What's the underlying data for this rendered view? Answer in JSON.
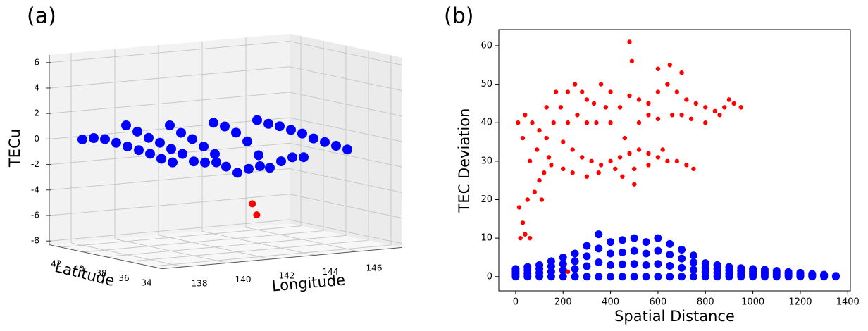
{
  "chart_data": [
    {
      "type": "scatter3d",
      "panel": "(a)",
      "zlabel": "TECu",
      "ylabel": "Latitude",
      "xlabel": "Longitude",
      "xlim": [
        137,
        148
      ],
      "ylim": [
        33,
        43
      ],
      "zlim": [
        -8.3,
        6.6
      ],
      "xticks": [
        138,
        140,
        142,
        144,
        146
      ],
      "yticks": [
        34,
        36,
        38,
        40,
        42
      ],
      "zticks": [
        6,
        4,
        2,
        0,
        -2,
        -4,
        -6,
        -8
      ],
      "series": [
        {
          "color": "#0000ff",
          "x": [
            138,
            140,
            142,
            144,
            146,
            138,
            140,
            142,
            144,
            146,
            138,
            140,
            142,
            144,
            146,
            138,
            140,
            142,
            144,
            146,
            138,
            140,
            142,
            144,
            146,
            138,
            140,
            142,
            144,
            146,
            138,
            140,
            142,
            144,
            146,
            138,
            140,
            142,
            144,
            146,
            138,
            140,
            142,
            144,
            146
          ],
          "y": [
            34,
            34,
            34,
            34,
            34,
            35,
            35,
            35,
            35,
            35,
            36,
            36,
            36,
            36,
            36,
            37,
            37,
            37,
            37,
            37,
            38,
            38,
            38,
            38,
            38,
            39,
            39,
            39,
            39,
            39,
            40,
            40,
            40,
            40,
            40,
            41,
            41,
            41,
            41,
            41,
            42,
            42,
            42,
            42,
            42
          ],
          "values": [
            -0.3,
            -0.6,
            -1.2,
            -0.8,
            -0.5,
            -0.2,
            -0.8,
            -1.6,
            -1.0,
            -0.4,
            0.0,
            -0.9,
            -2.1,
            -1.5,
            -0.3,
            0.1,
            -0.5,
            -1.8,
            -2.2,
            -0.2,
            0.2,
            -0.3,
            -1.0,
            -1.4,
            0.0,
            0.3,
            0.0,
            -0.6,
            -0.5,
            0.1,
            0.4,
            0.2,
            -0.2,
            0.0,
            0.2,
            0.3,
            0.5,
            0.1,
            0.3,
            0.2,
            0.0,
            0.8,
            0.5,
            0.4,
            0.3
          ]
        },
        {
          "color": "#ff0000",
          "x": [
            143.2,
            143.4
          ],
          "y": [
            37,
            37
          ],
          "values": [
            -4.9,
            -5.8
          ]
        }
      ]
    },
    {
      "type": "scatter",
      "panel": "(b)",
      "xlabel": "Spatial Distance",
      "ylabel": "TEC Deviation",
      "xlim": [
        -71,
        1411
      ],
      "ylim": [
        -3.7,
        64.2
      ],
      "xticks": [
        0,
        200,
        400,
        600,
        800,
        1000,
        1200,
        1400
      ],
      "yticks": [
        0,
        10,
        20,
        30,
        40,
        50,
        60
      ],
      "series": [
        {
          "color": "#0000ff",
          "x": [
            0,
            0,
            0,
            0,
            50,
            50,
            50,
            50,
            100,
            100,
            100,
            100,
            150,
            150,
            150,
            150,
            200,
            200,
            200,
            200,
            250,
            250,
            250,
            250,
            300,
            300,
            300,
            300,
            350,
            350,
            350,
            350,
            400,
            400,
            400,
            400,
            450,
            450,
            450,
            450,
            500,
            500,
            500,
            500,
            550,
            550,
            550,
            550,
            600,
            600,
            600,
            600,
            650,
            650,
            650,
            650,
            700,
            700,
            700,
            700,
            750,
            750,
            750,
            750,
            800,
            800,
            800,
            800,
            850,
            850,
            850,
            850,
            900,
            900,
            900,
            900,
            950,
            950,
            950,
            950,
            1000,
            1000,
            1000,
            1000,
            1050,
            1050,
            1050,
            1050,
            1100,
            1100,
            1100,
            1100,
            1150,
            1150,
            1150,
            1150,
            1200,
            1200,
            1200,
            1200,
            1250,
            1250,
            1250,
            1250,
            1300,
            1300,
            1300,
            1300,
            1350,
            1350,
            1350,
            1350
          ],
          "values": [
            0,
            0.7,
            1.3,
            2,
            0,
            0.8,
            1.7,
            2.5,
            0,
            1,
            2,
            3,
            0,
            1.3,
            2.7,
            4,
            0,
            1.7,
            3.3,
            5,
            0,
            2,
            4,
            6,
            0,
            2.7,
            5.3,
            8,
            0,
            3.7,
            7.3,
            11,
            0,
            3,
            6,
            9,
            0,
            3.2,
            6.3,
            9.5,
            0,
            3.3,
            6.7,
            10,
            0,
            3,
            6,
            9,
            0,
            3.3,
            6.7,
            10,
            0,
            2.8,
            5.7,
            8.5,
            0,
            2.3,
            4.7,
            7,
            0,
            1.8,
            3.7,
            5.5,
            0,
            1.2,
            2.3,
            3.5,
            0,
            1,
            2,
            3,
            0,
            0.8,
            1.7,
            2.5,
            0,
            0.7,
            1.5,
            2.2,
            0,
            0.7,
            1.3,
            2,
            0,
            0.6,
            1.2,
            1.8,
            0,
            0.5,
            1,
            1.5,
            0,
            0.4,
            0.8,
            1.2,
            0,
            0.3,
            0.7,
            1,
            0,
            0.2,
            0.5,
            0.7,
            0,
            0.2,
            0.3,
            0.5,
            0,
            0.1,
            0.1,
            0.2
          ]
        },
        {
          "color": "#ff0000",
          "x": [
            20,
            40,
            60,
            30,
            15,
            50,
            80,
            100,
            120,
            150,
            60,
            30,
            10,
            40,
            70,
            100,
            130,
            160,
            190,
            220,
            250,
            280,
            300,
            330,
            200,
            240,
            280,
            320,
            360,
            400,
            440,
            480,
            520,
            560,
            600,
            640,
            680,
            720,
            750,
            200,
            240,
            300,
            350,
            420,
            500,
            560,
            620,
            460,
            400,
            440,
            480,
            520,
            560,
            600,
            640,
            680,
            720,
            760,
            800,
            840,
            880,
            920,
            950,
            600,
            650,
            700,
            480,
            490,
            400,
            360,
            380,
            340,
            520,
            560,
            600,
            660,
            700,
            740,
            800,
            860,
            900,
            170,
            130,
            90,
            110,
            140,
            500,
            450,
            220,
            260,
            300,
            220
          ],
          "values": [
            10,
            11,
            10,
            14,
            18,
            20,
            22,
            25,
            27,
            29,
            30,
            36,
            40,
            42,
            40,
            38,
            36,
            40,
            44,
            48,
            50,
            48,
            46,
            45,
            35,
            33,
            31,
            30,
            29,
            30,
            31,
            32,
            33,
            32,
            31,
            30,
            30,
            29,
            28,
            28,
            27,
            26,
            27,
            28,
            28,
            29,
            33,
            36,
            40,
            44,
            47,
            46,
            45,
            48,
            50,
            48,
            46,
            45,
            44,
            43,
            44,
            45,
            44,
            54,
            55,
            53,
            61,
            56,
            48,
            50,
            44,
            40,
            40,
            42,
            41,
            42,
            42,
            41,
            40,
            42,
            46,
            48,
            44,
            33,
            20,
            31,
            24,
            26,
            40,
            42,
            40,
            1.3
          ]
        }
      ]
    }
  ]
}
